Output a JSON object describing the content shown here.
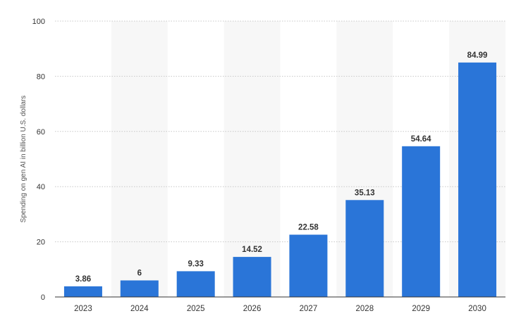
{
  "chart_data": {
    "type": "bar",
    "title": "",
    "xlabel": "",
    "ylabel": "Spending on gen AI in billion U.S. dollars",
    "categories": [
      "2023",
      "2024",
      "2025",
      "2026",
      "2027",
      "2028",
      "2029",
      "2030"
    ],
    "values": [
      3.86,
      6,
      9.33,
      14.52,
      22.58,
      35.13,
      54.64,
      84.99
    ],
    "value_labels": [
      "3.86",
      "6",
      "9.33",
      "14.52",
      "22.58",
      "35.13",
      "54.64",
      "84.99"
    ],
    "ylim": [
      0,
      100
    ],
    "yticks": [
      0,
      20,
      40,
      60,
      80,
      100
    ],
    "grid": true,
    "legend": "none",
    "colors": {
      "bar": "#2a75d8",
      "band": "#f7f7f7",
      "grid": "#c8c8c8",
      "axis": "#333333"
    }
  }
}
